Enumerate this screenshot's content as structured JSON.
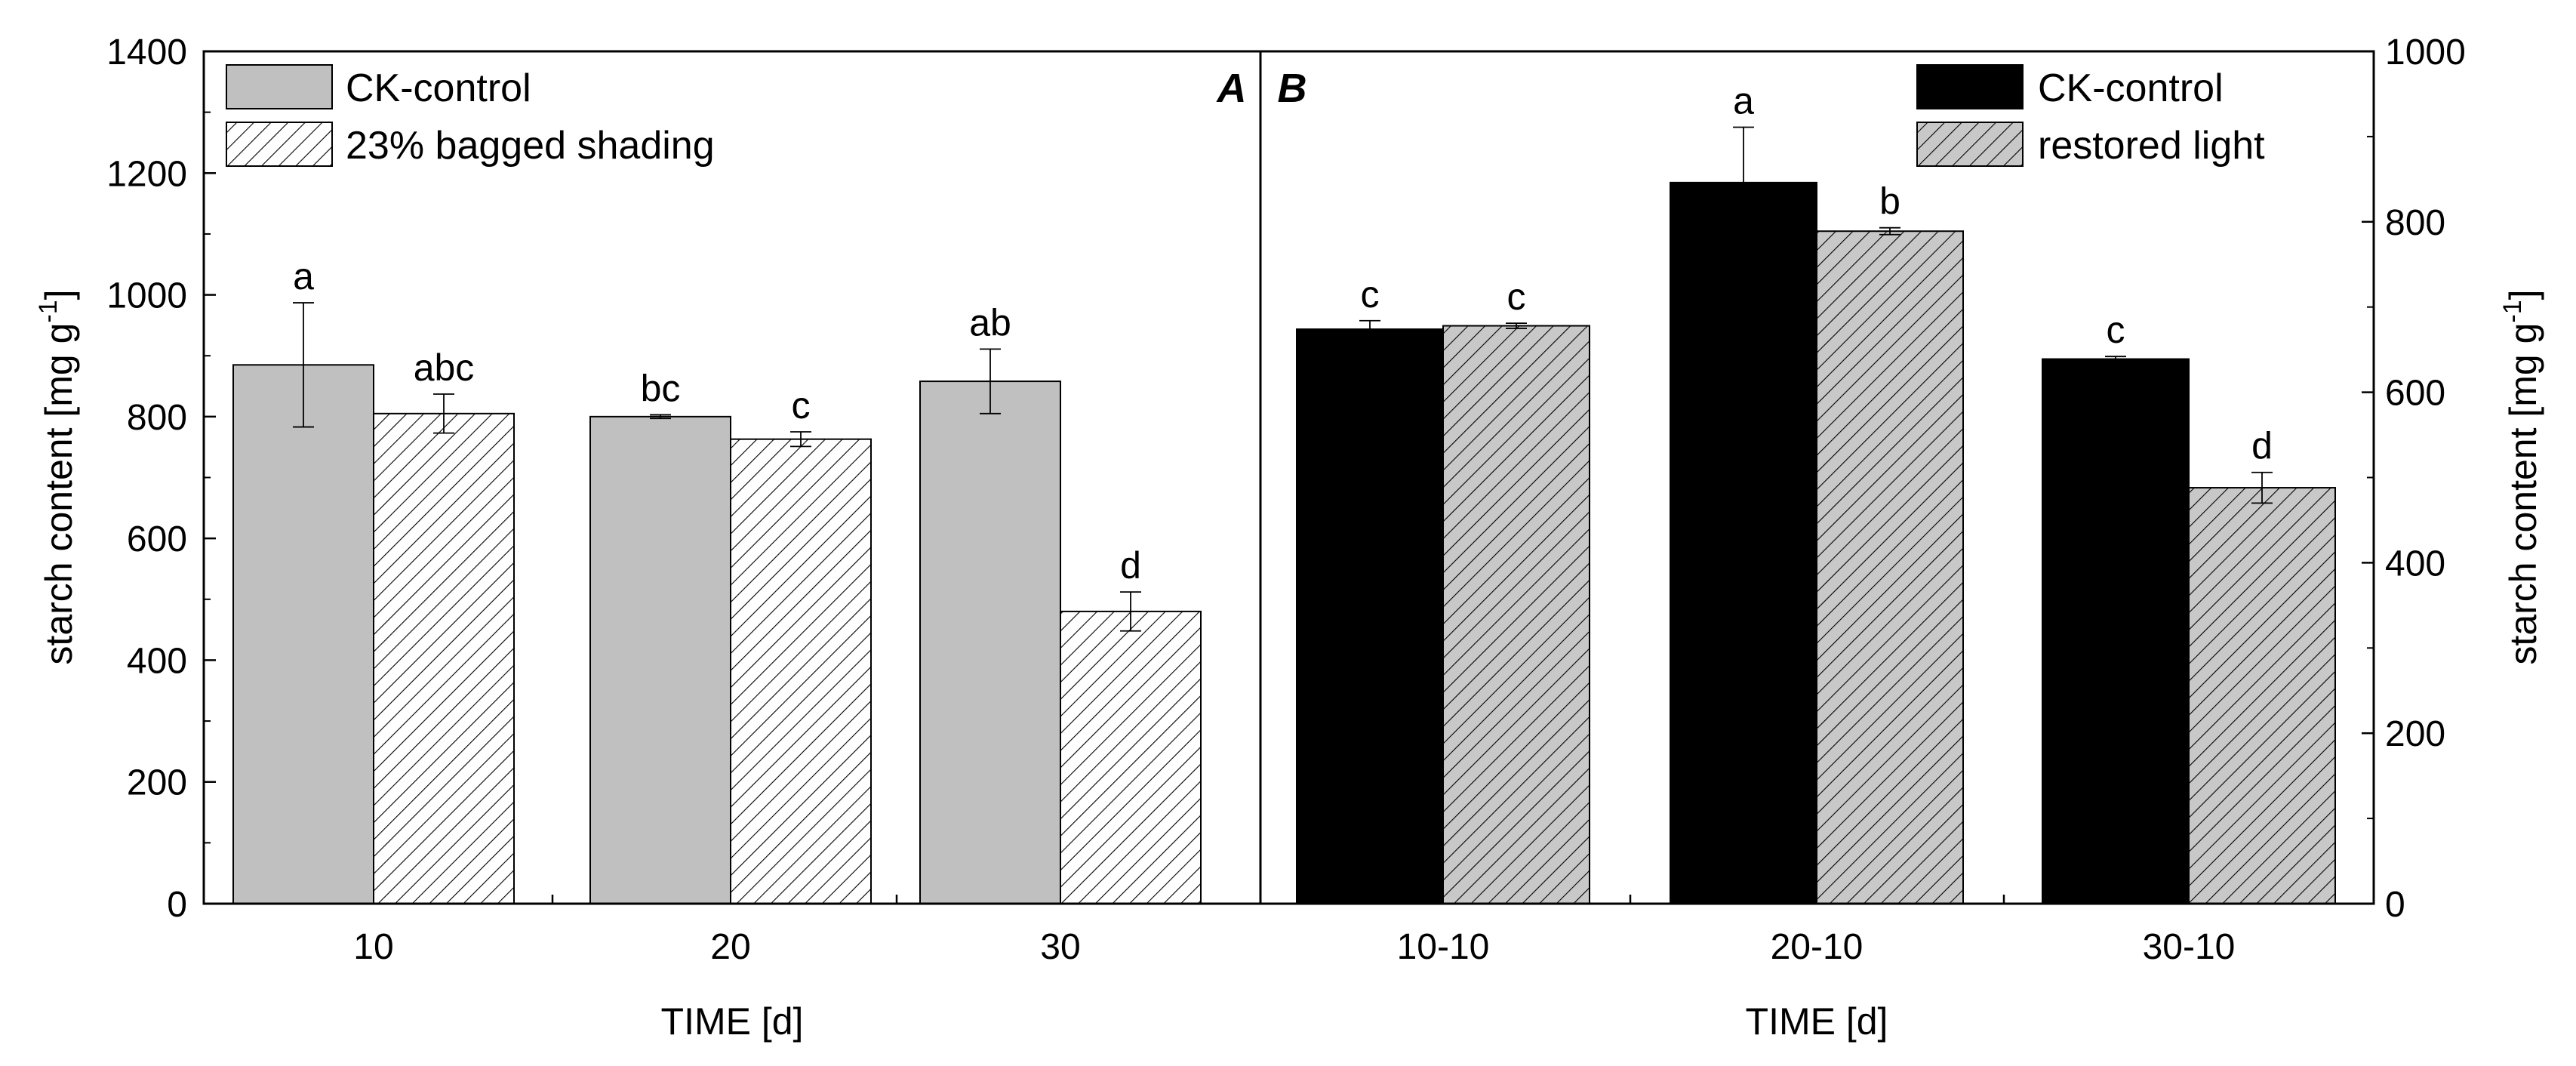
{
  "colors": {
    "control_gray": "#c0c0c0",
    "black": "#000000",
    "hatch_gray_bg": "#c8c8c8",
    "white": "#ffffff"
  },
  "chart_data": [
    {
      "type": "bar",
      "panel_label": "A",
      "categories": [
        "10",
        "20",
        "30"
      ],
      "series": [
        {
          "name": "CK-control",
          "style": "solid-gray",
          "values": [
            885,
            800,
            858
          ],
          "errors": [
            102,
            3,
            53
          ],
          "letters": [
            "a",
            "bc",
            "ab"
          ]
        },
        {
          "name": "23% bagged shading",
          "style": "hatched-white",
          "values": [
            805,
            763,
            480
          ],
          "errors": [
            32,
            12,
            32
          ],
          "letters": [
            "abc",
            "c",
            "d"
          ]
        }
      ],
      "xlabel": "TIME [d]",
      "ylabel_main": "starch content [mg g",
      "ylabel_sup": "-1",
      "ylabel_end": "]",
      "ylim": [
        0,
        1400
      ],
      "yticks": [
        "0",
        "200",
        "400",
        "600",
        "800",
        "1000",
        "1200",
        "1400"
      ],
      "legend_position": "top-left"
    },
    {
      "type": "bar",
      "panel_label": "B",
      "categories": [
        "10-10",
        "20-10",
        "30-10"
      ],
      "series": [
        {
          "name": "CK-control",
          "style": "solid-black",
          "values": [
            674,
            846,
            639
          ],
          "errors": [
            10,
            65,
            3
          ],
          "letters": [
            "c",
            "a",
            "c"
          ]
        },
        {
          "name": "restored light",
          "style": "hatched-gray",
          "values": [
            678,
            789,
            488
          ],
          "errors": [
            3,
            4,
            18
          ],
          "letters": [
            "c",
            "b",
            "d"
          ]
        }
      ],
      "xlabel": "TIME [d]",
      "ylabel_main": "starch content [mg g",
      "ylabel_sup": "-1",
      "ylabel_end": "]",
      "ylim": [
        0,
        1000
      ],
      "yticks": [
        "0",
        "200",
        "400",
        "600",
        "800",
        "1000"
      ],
      "legend_position": "top-right"
    }
  ]
}
